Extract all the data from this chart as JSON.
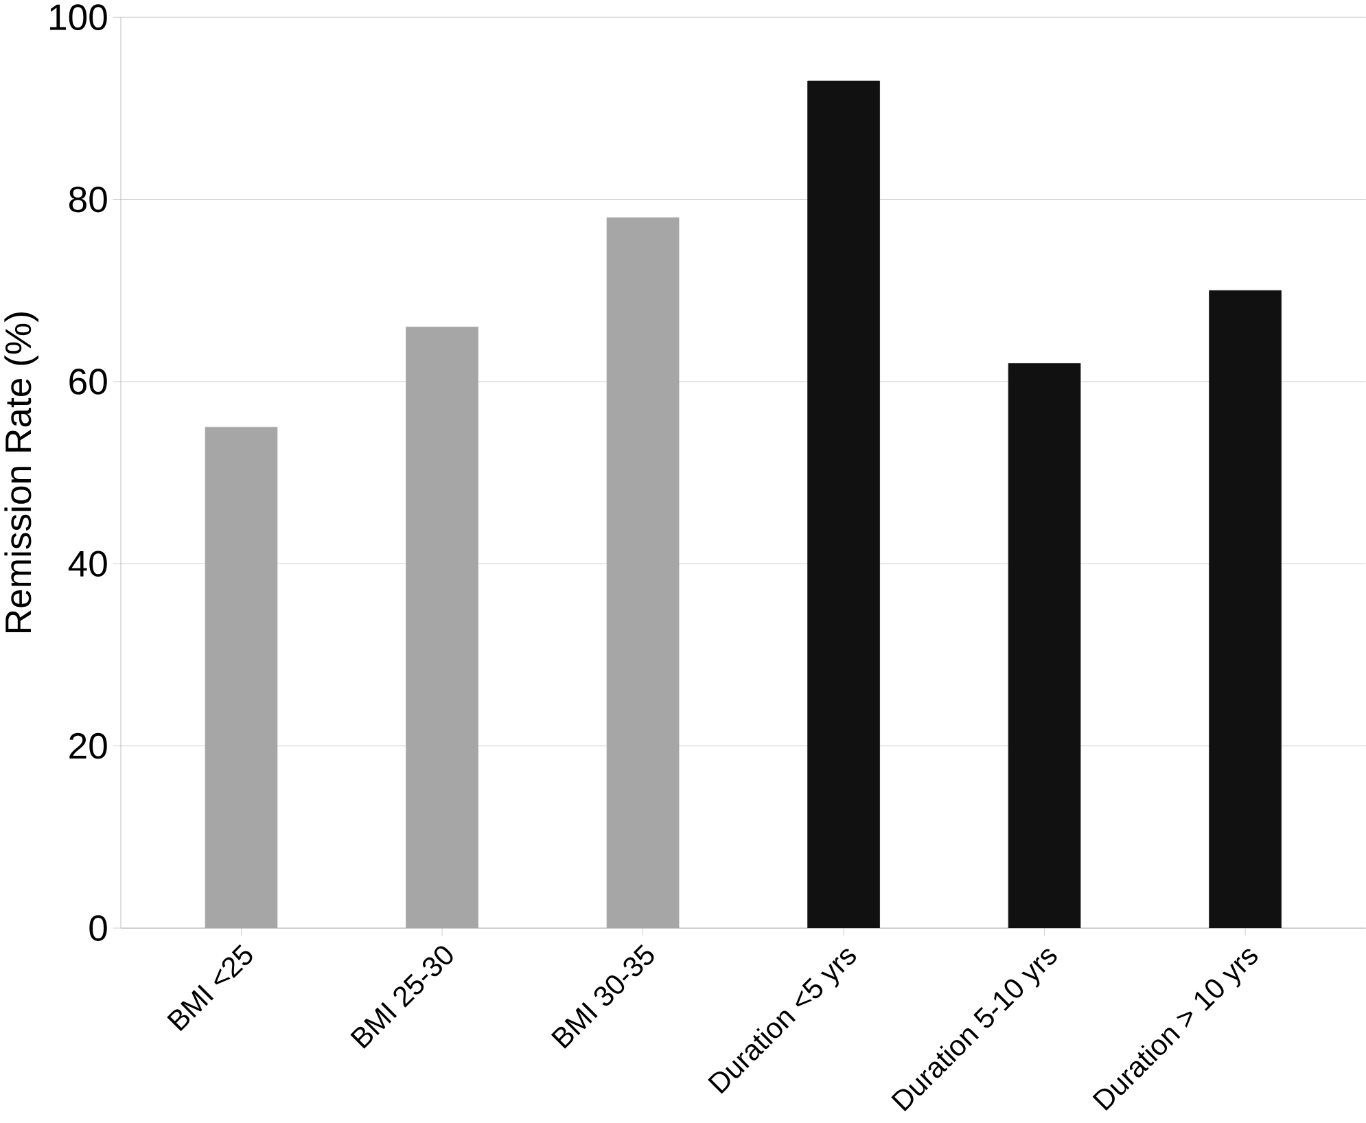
{
  "chart_data": {
    "type": "bar",
    "ylabel": "Remission Rate (%)",
    "categories": [
      "BMI <25",
      "BMI 25-30",
      "BMI 30-35",
      "Duration <5 yrs",
      "Duration 5-10 yrs",
      "Duration > 10 yrs"
    ],
    "values": [
      55,
      66,
      78,
      93,
      62,
      70
    ],
    "colors": [
      "#a6a6a6",
      "#a6a6a6",
      "#a6a6a6",
      "#111111",
      "#111111",
      "#111111"
    ],
    "ylim": [
      0,
      100
    ],
    "yticks": [
      0,
      20,
      40,
      60,
      80,
      100
    ],
    "grid": "y"
  }
}
